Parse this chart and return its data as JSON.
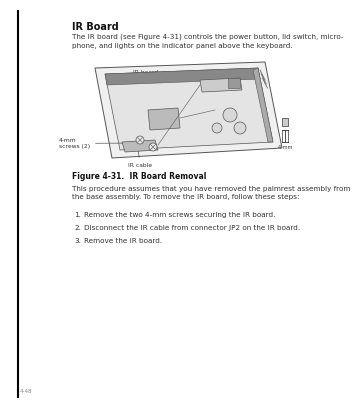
{
  "bg_color": "#ffffff",
  "title": "IR Board",
  "title_fontsize": 7.0,
  "intro_text": "The IR board (see Figure 4-31) controls the power button, lid switch, micro-\nphone, and lights on the indicator panel above the keyboard.",
  "intro_fontsize": 5.2,
  "figure_caption": "Figure 4-31.  IR Board Removal",
  "figure_caption_fontsize": 5.5,
  "body_text": "This procedure assumes that you have removed the palmrest assembly from\nthe base assembly. To remove the IR board, follow these steps:",
  "body_fontsize": 5.2,
  "steps": [
    "Remove the two 4-mm screws securing the IR board.",
    "Disconnect the IR cable from connector JP2 on the IR board.",
    "Remove the IR board."
  ],
  "steps_fontsize": 5.2,
  "label_ir_board": "IR board",
  "label_screws": "4-mm\nscrews (2)",
  "label_ir_cable": "IR cable",
  "label_scale": "4 mm",
  "text_color": "#333333",
  "diagram_edge_color": "#555555",
  "page_number_text": "4-48"
}
